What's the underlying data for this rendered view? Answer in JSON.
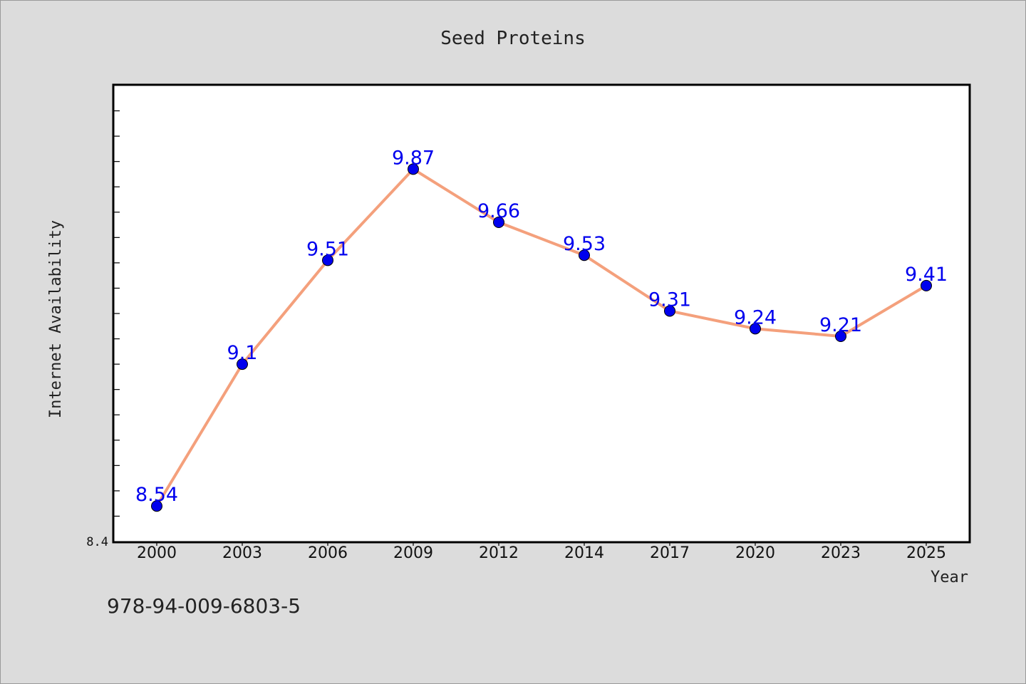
{
  "chart_data": {
    "type": "line",
    "title": "Seed Proteins",
    "xlabel": "Year",
    "ylabel": "Internet Availability",
    "x": [
      "2000",
      "2003",
      "2006",
      "2009",
      "2012",
      "2014",
      "2017",
      "2020",
      "2023",
      "2025"
    ],
    "series": [
      {
        "values": [
          8.54,
          9.1,
          9.51,
          9.87,
          9.66,
          9.53,
          9.31,
          9.24,
          9.21,
          9.41
        ],
        "labels": [
          "8.54",
          "9.1",
          "9.51",
          "9.87",
          "9.66",
          "9.53",
          "9.31",
          "9.24",
          "9.21",
          "9.41"
        ]
      }
    ],
    "ylim": [
      8.4,
      10.2
    ],
    "ytick_labels": [
      "8.4"
    ],
    "grid": false,
    "colors": {
      "line": "#f4a07c",
      "marker": "#0000ee",
      "data_label": "#0000ee",
      "plot_bg": "#ffffff",
      "page_bg": "#dcdcdc"
    }
  },
  "footer": {
    "isbn": "978-94-009-6803-5"
  }
}
